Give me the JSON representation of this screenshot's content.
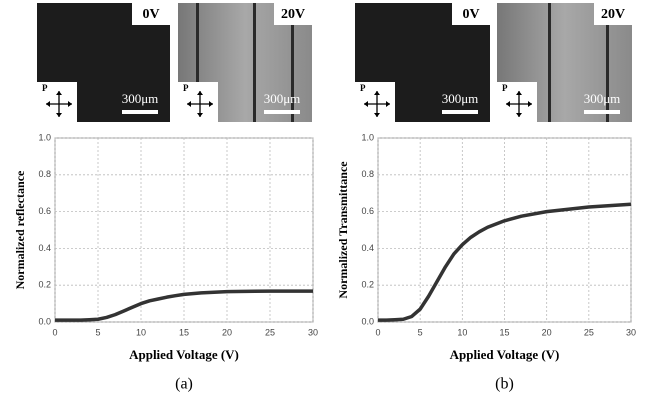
{
  "micrographs": [
    {
      "label": "0V",
      "scale": "300μm",
      "polarizer": "P"
    },
    {
      "label": "20V",
      "scale": "300μm",
      "polarizer": "P"
    },
    {
      "label": "0V",
      "scale": "300μm",
      "polarizer": "P"
    },
    {
      "label": "20V",
      "scale": "300μm",
      "polarizer": "P"
    }
  ],
  "panel_labels": [
    "(a)",
    "(b)"
  ],
  "chart_data": [
    {
      "type": "line",
      "xlabel": "Applied Voltage (V)",
      "ylabel": "Normalized reflectance",
      "x": [
        0,
        1,
        2,
        3,
        4,
        5,
        6,
        7,
        8,
        9,
        10,
        11,
        12,
        13,
        14,
        15,
        17,
        20,
        25,
        30
      ],
      "values": [
        0.01,
        0.01,
        0.01,
        0.01,
        0.012,
        0.015,
        0.025,
        0.04,
        0.06,
        0.08,
        0.1,
        0.115,
        0.125,
        0.135,
        0.143,
        0.15,
        0.158,
        0.165,
        0.168,
        0.168
      ],
      "color": "#333333",
      "xlim": [
        0,
        30
      ],
      "xticks": [
        0,
        5,
        10,
        15,
        20,
        25,
        30
      ],
      "ylim": [
        0,
        1
      ],
      "yticks": [
        {
          "value": 0,
          "label": "0.0"
        },
        0.2,
        0.4,
        0.6,
        0.8,
        {
          "value": 1,
          "label": "1.0"
        }
      ],
      "grid": true
    },
    {
      "type": "line",
      "xlabel": "Applied Voltage (V)",
      "ylabel": "Normalized Transmittance",
      "x": [
        0,
        1,
        2,
        3,
        4,
        5,
        6,
        7,
        8,
        9,
        10,
        11,
        12,
        13,
        15,
        17,
        20,
        25,
        30
      ],
      "values": [
        0.01,
        0.01,
        0.012,
        0.015,
        0.03,
        0.07,
        0.14,
        0.22,
        0.3,
        0.37,
        0.42,
        0.46,
        0.49,
        0.515,
        0.55,
        0.575,
        0.6,
        0.625,
        0.64
      ],
      "color": "#333333",
      "xlim": [
        0,
        30
      ],
      "xticks": [
        0,
        5,
        10,
        15,
        20,
        25,
        30
      ],
      "ylim": [
        0,
        1
      ],
      "yticks": [
        {
          "value": 0,
          "label": "0.0"
        },
        0.2,
        0.4,
        0.6,
        0.8,
        {
          "value": 1,
          "label": "1.0"
        }
      ],
      "grid": true
    }
  ]
}
